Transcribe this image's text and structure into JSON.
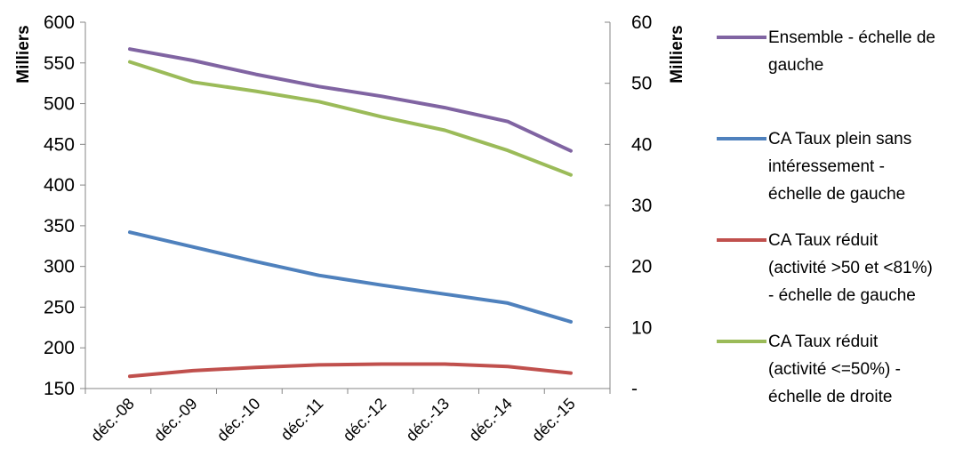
{
  "chart_data": {
    "type": "line",
    "categories": [
      "déc.-08",
      "déc.-09",
      "déc.-10",
      "déc.-11",
      "déc.-12",
      "déc.-13",
      "déc.-14",
      "déc.-15"
    ],
    "y_left": {
      "label": "Milliers",
      "ylim": [
        150,
        600
      ],
      "ticks": [
        "150",
        "200",
        "250",
        "300",
        "350",
        "400",
        "450",
        "500",
        "550",
        "600"
      ]
    },
    "y_right": {
      "label": "Milliers",
      "ylim": [
        0,
        60
      ],
      "ticks": [
        "-",
        "10",
        "20",
        "30",
        "40",
        "50",
        "60"
      ]
    },
    "series": [
      {
        "name": "Ensemble - échelle de gauche",
        "axis": "left",
        "color": "#8064a2",
        "values": [
          567,
          553,
          536,
          521,
          509,
          495,
          478,
          442
        ]
      },
      {
        "name": "CA Taux plein sans intéressement - échelle de gauche",
        "axis": "left",
        "color": "#4f81bd",
        "values": [
          342,
          324,
          306,
          289,
          277,
          266,
          255,
          232
        ]
      },
      {
        "name": "CA Taux réduit (activité >50 et <81%) - échelle de gauche",
        "axis": "left",
        "color": "#c0504d",
        "values": [
          165,
          172,
          176,
          179,
          180,
          180,
          177,
          169
        ]
      },
      {
        "name": "CA Taux réduit (activité <=50%) - échelle de droite",
        "axis": "right",
        "color": "#9bbb59",
        "values": [
          53.5,
          50.2,
          48.7,
          47.0,
          44.5,
          42.3,
          39.0,
          35.0
        ]
      }
    ],
    "legend": {
      "position": "right",
      "entries": [
        {
          "lines": [
            "Ensemble - échelle de",
            "gauche"
          ],
          "color": "#8064a2"
        },
        {
          "lines": [
            "CA Taux plein sans",
            "intéressement -",
            "échelle de gauche"
          ],
          "color": "#4f81bd"
        },
        {
          "lines": [
            "CA Taux réduit",
            "(activité >50 et <81%)",
            "- échelle de gauche"
          ],
          "color": "#c0504d"
        },
        {
          "lines": [
            "CA Taux réduit",
            "(activité <=50%) -",
            "échelle de droite"
          ],
          "color": "#9bbb59"
        }
      ]
    },
    "grid": false
  }
}
